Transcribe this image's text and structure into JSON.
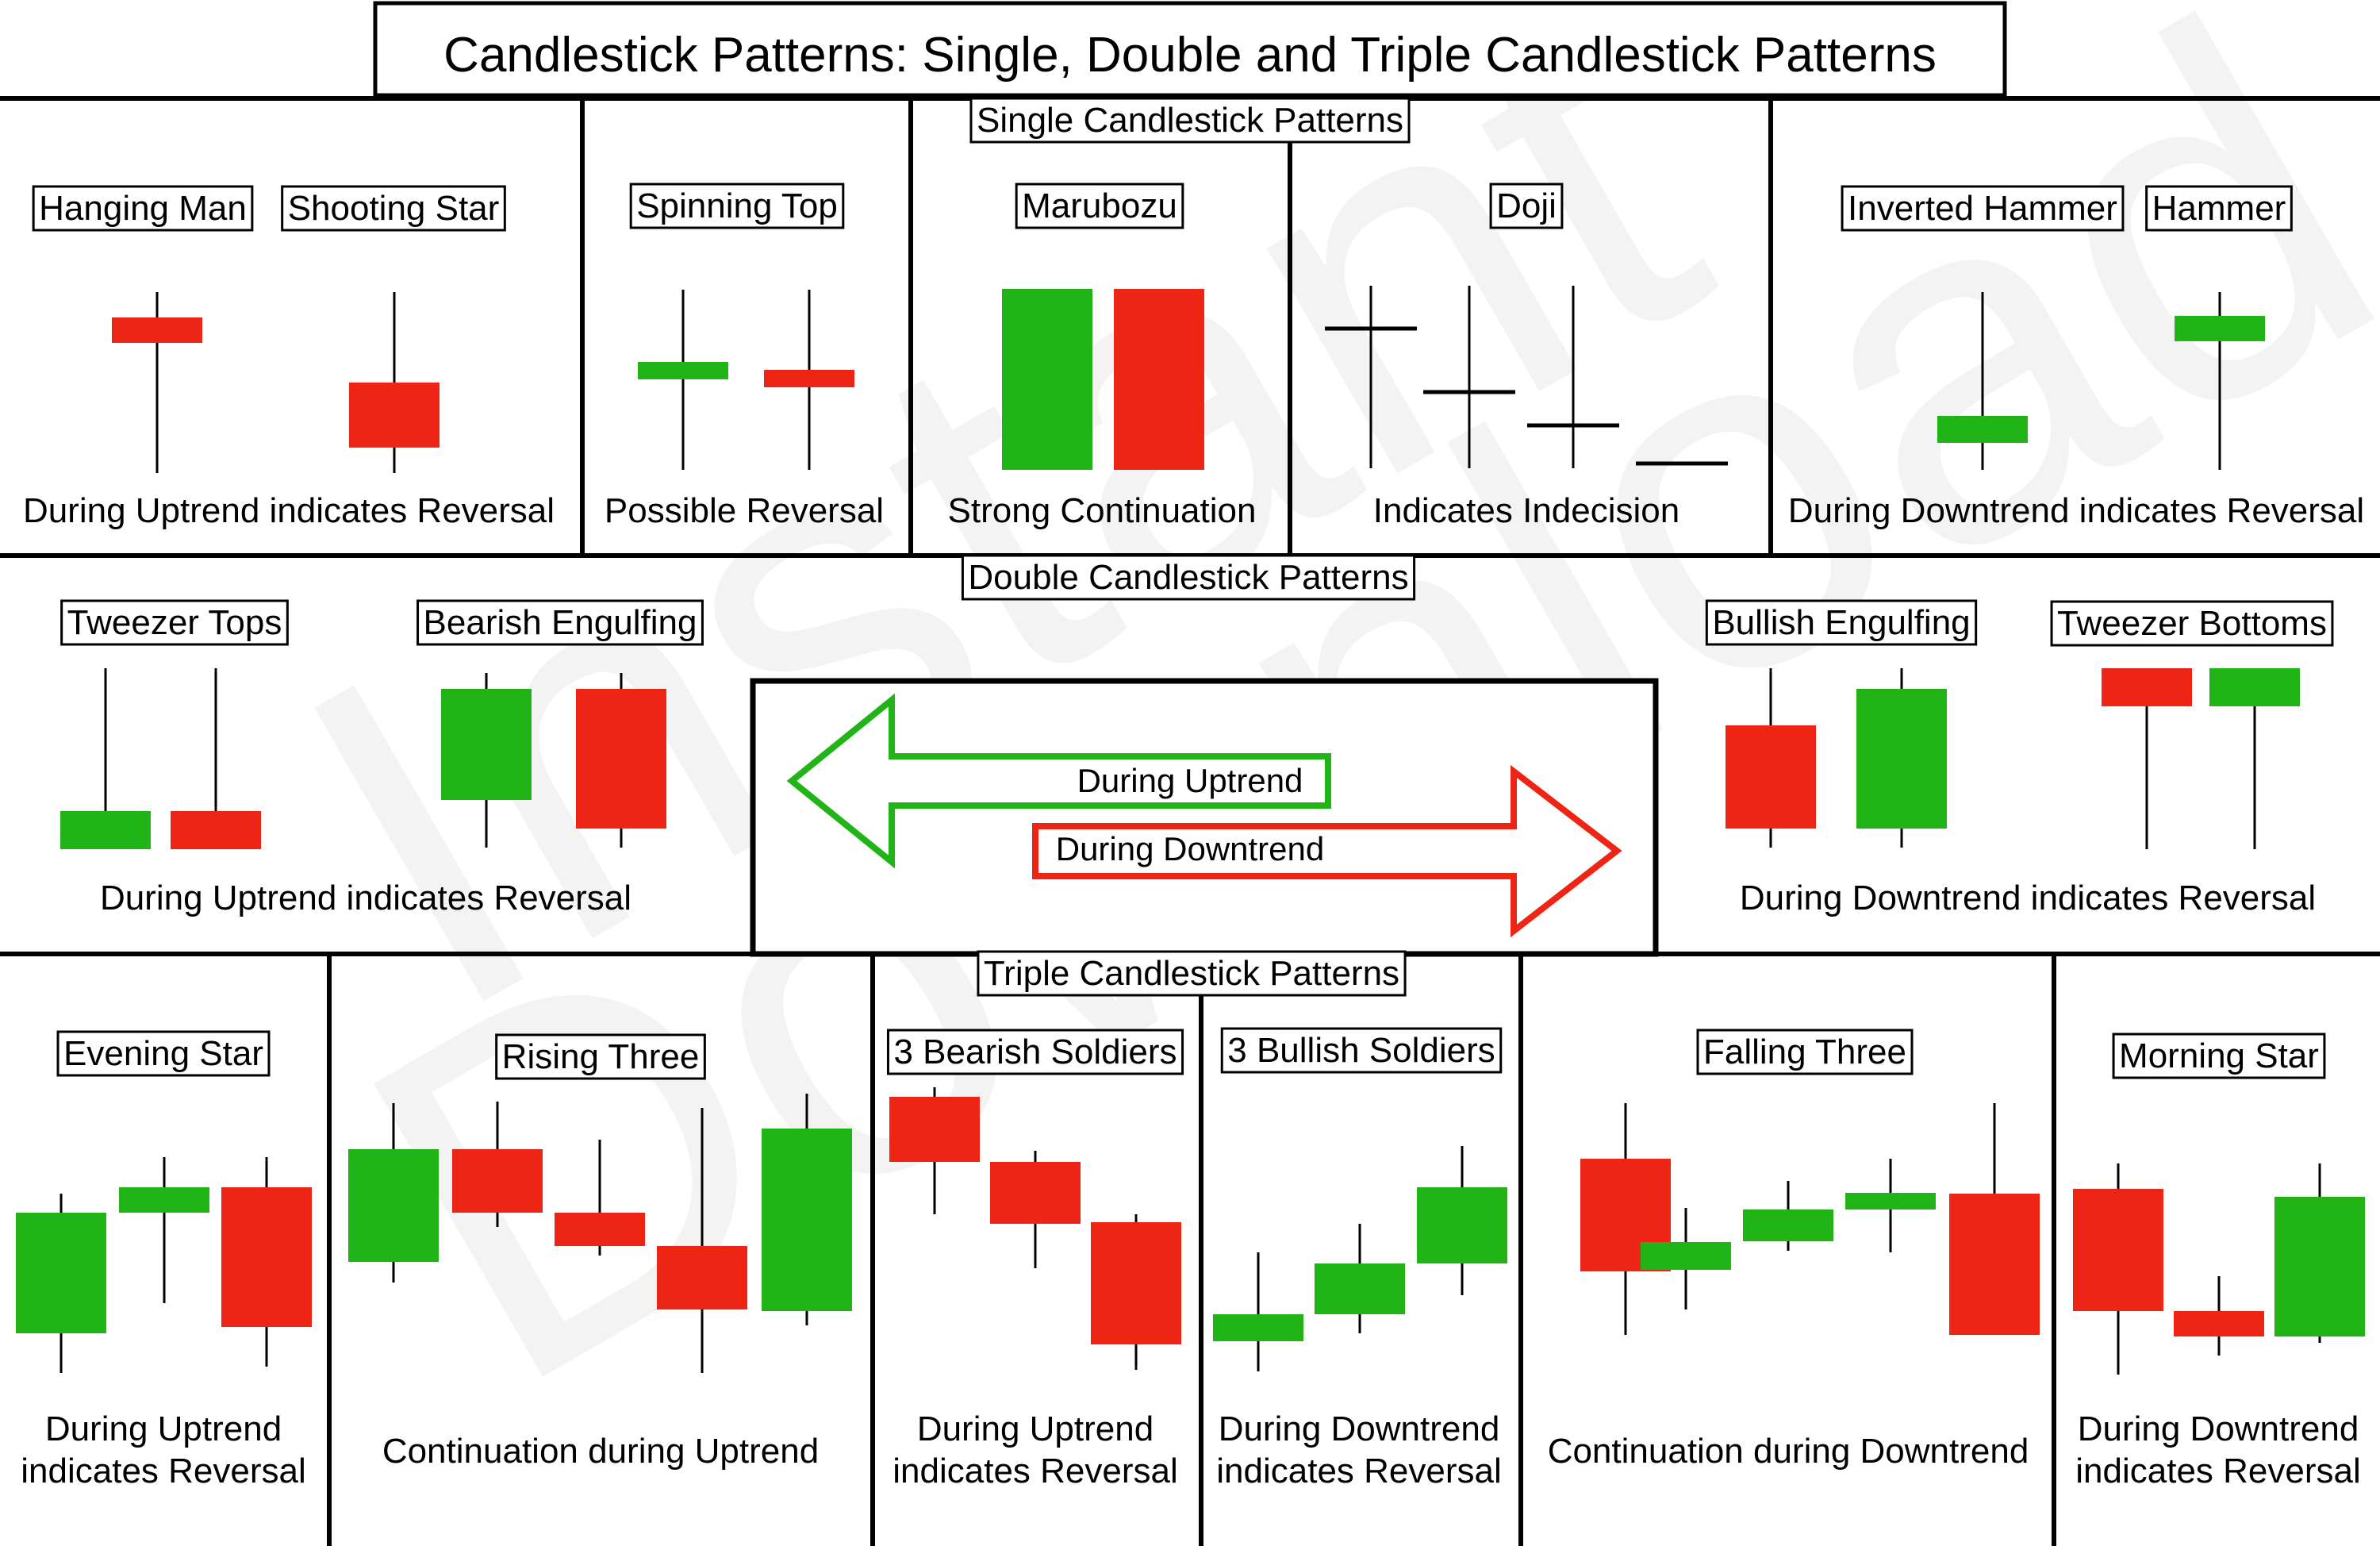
{
  "title": "Candlestick Patterns: Single, Double and Triple Candlestick Patterns",
  "colors": {
    "bullish": "#21b416",
    "bearish": "#ee2415",
    "line": "#000000"
  },
  "watermark": {
    "line1": "Instant",
    "line2": "Download"
  },
  "sections": {
    "single": "Single Candlestick Patterns",
    "double": "Double Candlestick Patterns",
    "triple": "Triple Candlestick Patterns"
  },
  "patterns": {
    "hanging_man": "Hanging Man",
    "shooting_star": "Shooting Star",
    "spinning_top": "Spinning Top",
    "marubozu": "Marubozu",
    "doji": "Doji",
    "inverted_hammer": "Inverted Hammer",
    "hammer": "Hammer",
    "tweezer_tops": "Tweezer Tops",
    "bearish_engulfing": "Bearish Engulfing",
    "bullish_engulfing": "Bullish Engulfing",
    "tweezer_bottoms": "Tweezer Bottoms",
    "evening_star": "Evening Star",
    "rising_three": "Rising Three",
    "three_bearish_soldiers": "3 Bearish Soldiers",
    "three_bullish_soldiers": "3 Bullish Soldiers",
    "falling_three": "Falling Three",
    "morning_star": "Morning Star"
  },
  "captions": {
    "hanging_shooting": "During Uptrend indicates Reversal",
    "spinning_top": "Possible Reversal",
    "marubozu": "Strong Continuation",
    "doji": "Indicates Indecision",
    "hammers": "During Downtrend indicates Reversal",
    "double_left": "During Uptrend indicates Reversal",
    "double_right": "During Downtrend indicates Reversal",
    "evening_star_1": "During Uptrend",
    "evening_star_2": "indicates Reversal",
    "rising_three": "Continuation during Uptrend",
    "bearish_soldiers_1": "During Uptrend",
    "bearish_soldiers_2": "indicates Reversal",
    "bullish_soldiers_1": "During Downtrend",
    "bullish_soldiers_2": "indicates Reversal",
    "falling_three": "Continuation during Downtrend",
    "morning_star_1": "During Downtrend",
    "morning_star_2": "indicates Reversal"
  },
  "legend": {
    "uptrend": "During Uptrend",
    "downtrend": "During Downtrend"
  }
}
